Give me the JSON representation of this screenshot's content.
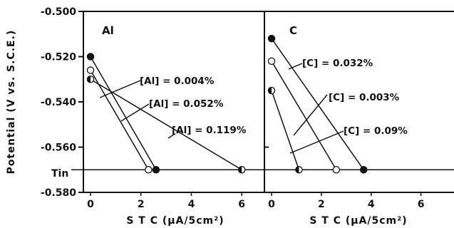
{
  "chart_data": [
    {
      "type": "line",
      "panel_label": "Al",
      "xlabel": "S T C  (μA/5cm²)",
      "ylabel": "Potential (V vs. S.C.E.)",
      "xlim": [
        0,
        6.9
      ],
      "ylim": [
        -0.58,
        -0.5
      ],
      "xticks": [
        0,
        2,
        4,
        6
      ],
      "yticks": [
        -0.5,
        -0.52,
        -0.54,
        -0.56,
        -0.58
      ],
      "ytick_labels": [
        "-0.500",
        "-0.520",
        "-0.540",
        "-0.560",
        "-0.580"
      ],
      "reference_line": {
        "label": "Tin",
        "y": -0.57
      },
      "series": [
        {
          "name": "[Al] = 0.004%",
          "marker": "filled",
          "points": [
            [
              0,
              -0.52
            ],
            [
              2.6,
              -0.57
            ]
          ]
        },
        {
          "name": "[Al] = 0.052%",
          "marker": "open",
          "points": [
            [
              0,
              -0.526
            ],
            [
              2.3,
              -0.57
            ]
          ]
        },
        {
          "name": "[Al] = 0.119%",
          "marker": "half",
          "points": [
            [
              0,
              -0.53
            ],
            [
              6.0,
              -0.57
            ]
          ]
        }
      ]
    },
    {
      "type": "line",
      "panel_label": "C",
      "xlabel": "S T C  (μA/5cm²)",
      "xlim": [
        0,
        7.7
      ],
      "ylim": [
        -0.58,
        -0.5
      ],
      "xticks": [
        0,
        2,
        4,
        6,
        8
      ],
      "reference_line": {
        "y": -0.57
      },
      "series": [
        {
          "name": "[C] = 0.032%",
          "marker": "filled",
          "points": [
            [
              0,
              -0.512
            ],
            [
              3.7,
              -0.57
            ]
          ]
        },
        {
          "name": "[C] = 0.003%",
          "marker": "open",
          "points": [
            [
              0,
              -0.522
            ],
            [
              2.6,
              -0.57
            ]
          ]
        },
        {
          "name": "[C] = 0.09%",
          "marker": "half",
          "points": [
            [
              0,
              -0.535
            ],
            [
              1.1,
              -0.57
            ]
          ]
        }
      ]
    }
  ]
}
